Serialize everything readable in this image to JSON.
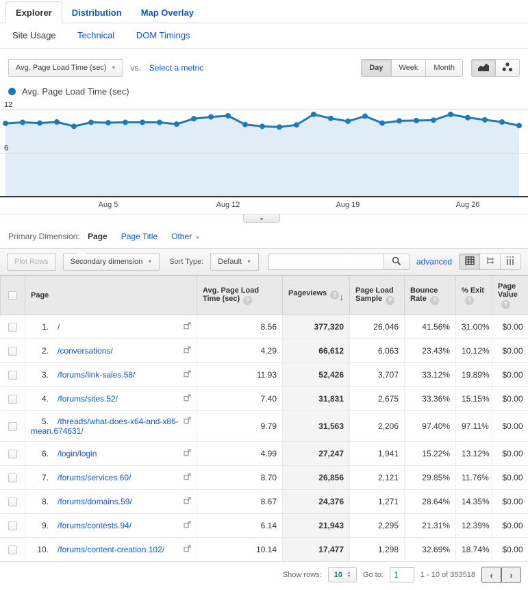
{
  "tabs": {
    "explorer": "Explorer",
    "distribution": "Distribution",
    "map_overlay": "Map Overlay"
  },
  "subnav": {
    "site_usage": "Site Usage",
    "technical": "Technical",
    "dom_timings": "DOM Timings"
  },
  "metric_bar": {
    "metric_selector": "Avg. Page Load Time (sec)",
    "vs_label": "vs.",
    "select_metric": "Select a metric",
    "granularity": [
      "Day",
      "Week",
      "Month"
    ],
    "active_granularity": "Day"
  },
  "legend": {
    "label": "Avg. Page Load Time (sec)"
  },
  "colors": {
    "link": "#1155cc",
    "chart_line": "#1c7bb4",
    "chart_fill": "#e1edf6",
    "grid": "#d8d8d8",
    "axis": "#333333"
  },
  "chart_data": {
    "type": "line",
    "title": "Avg. Page Load Time (sec)",
    "ylim": [
      0,
      12
    ],
    "yticks": [
      6,
      12
    ],
    "grid": "horizontal",
    "legend_position": "top-left",
    "series": [
      {
        "name": "Avg. Page Load Time (sec)",
        "values": [
          10.1,
          10.25,
          10.15,
          10.3,
          9.7,
          10.25,
          10.2,
          10.25,
          10.25,
          10.25,
          10.0,
          10.75,
          11.0,
          11.15,
          9.95,
          9.7,
          9.6,
          9.9,
          11.35,
          10.8,
          10.4,
          11.1,
          10.15,
          10.45,
          10.5,
          10.55,
          11.35,
          10.9,
          10.6,
          10.3,
          9.8
        ]
      }
    ],
    "x_ticks": [
      {
        "i": 6,
        "label": "Aug 5"
      },
      {
        "i": 13,
        "label": "Aug 12"
      },
      {
        "i": 20,
        "label": "Aug 19"
      },
      {
        "i": 27,
        "label": "Aug 26"
      }
    ]
  },
  "primary_dimension": {
    "label": "Primary Dimension:",
    "options": [
      {
        "label": "Page",
        "active": true
      },
      {
        "label": "Page Title",
        "active": false
      },
      {
        "label": "Other",
        "active": false,
        "caret": true
      }
    ]
  },
  "toolbar": {
    "plot_rows": "Plot Rows",
    "secondary_dimension": "Secondary dimension",
    "sort_type_label": "Sort Type:",
    "sort_type_value": "Default",
    "search_value": "",
    "advanced": "advanced"
  },
  "icons": {
    "legend_dot": "filled-circle",
    "line_chart_view": "line-chart",
    "motion_chart_view": "scatter-dots",
    "table_view": "grid",
    "comparison_view": "tree",
    "pivot_view": "columns",
    "search": "magnifier",
    "external_link": "new-window",
    "sort_desc": "down-arrow",
    "help": "question-mark"
  },
  "table": {
    "columns": [
      {
        "key": "page",
        "label": "Page",
        "help": false,
        "sorted": false
      },
      {
        "key": "avg_load",
        "label": "Avg. Page Load Time (sec)",
        "help": true,
        "sorted": false
      },
      {
        "key": "pageviews",
        "label": "Pageviews",
        "help": true,
        "sorted": true
      },
      {
        "key": "sample",
        "label": "Page Load Sample",
        "help": true,
        "sorted": false
      },
      {
        "key": "bounce",
        "label": "Bounce Rate",
        "help": true,
        "sorted": false
      },
      {
        "key": "exit",
        "label": "% Exit",
        "help": true,
        "sorted": false
      },
      {
        "key": "value",
        "label": "Page Value",
        "help": true,
        "sorted": false
      }
    ],
    "rows": [
      {
        "rank": "1.",
        "page": "/",
        "avg_load": "8.56",
        "pageviews": "377,320",
        "sample": "26,046",
        "bounce": "41.56%",
        "exit": "31.00%",
        "value": "$0.00"
      },
      {
        "rank": "2.",
        "page": "/conversations/",
        "avg_load": "4.29",
        "pageviews": "66,612",
        "sample": "6,063",
        "bounce": "23.43%",
        "exit": "10.12%",
        "value": "$0.00"
      },
      {
        "rank": "3.",
        "page": "/forums/link-sales.58/",
        "avg_load": "11.93",
        "pageviews": "52,426",
        "sample": "3,707",
        "bounce": "33.12%",
        "exit": "19.89%",
        "value": "$0.00"
      },
      {
        "rank": "4.",
        "page": "/forums/sites.52/",
        "avg_load": "7.40",
        "pageviews": "31,831",
        "sample": "2,675",
        "bounce": "33.36%",
        "exit": "15.15%",
        "value": "$0.00"
      },
      {
        "rank": "5.",
        "page": "/threads/what-does-x64-and-x86-mean.674631/",
        "avg_load": "9.79",
        "pageviews": "31,563",
        "sample": "2,206",
        "bounce": "97.40%",
        "exit": "97.11%",
        "value": "$0.00"
      },
      {
        "rank": "6.",
        "page": "/login/login",
        "avg_load": "4.99",
        "pageviews": "27,247",
        "sample": "1,941",
        "bounce": "15.22%",
        "exit": "13.12%",
        "value": "$0.00"
      },
      {
        "rank": "7.",
        "page": "/forums/services.60/",
        "avg_load": "8.70",
        "pageviews": "26,856",
        "sample": "2,121",
        "bounce": "29.85%",
        "exit": "11.76%",
        "value": "$0.00"
      },
      {
        "rank": "8.",
        "page": "/forums/domains.59/",
        "avg_load": "8.67",
        "pageviews": "24,376",
        "sample": "1,271",
        "bounce": "28.64%",
        "exit": "14.35%",
        "value": "$0.00"
      },
      {
        "rank": "9.",
        "page": "/forums/contests.94/",
        "avg_load": "6.14",
        "pageviews": "21,943",
        "sample": "2,295",
        "bounce": "21.31%",
        "exit": "12.39%",
        "value": "$0.00"
      },
      {
        "rank": "10.",
        "page": "/forums/content-creation.102/",
        "avg_load": "10.14",
        "pageviews": "17,477",
        "sample": "1,298",
        "bounce": "32.69%",
        "exit": "18.74%",
        "value": "$0.00"
      }
    ]
  },
  "footer": {
    "show_rows_label": "Show rows:",
    "show_rows_value": "10",
    "goto_label": "Go to:",
    "goto_value": "1",
    "range": "1 - 10 of 353518"
  }
}
